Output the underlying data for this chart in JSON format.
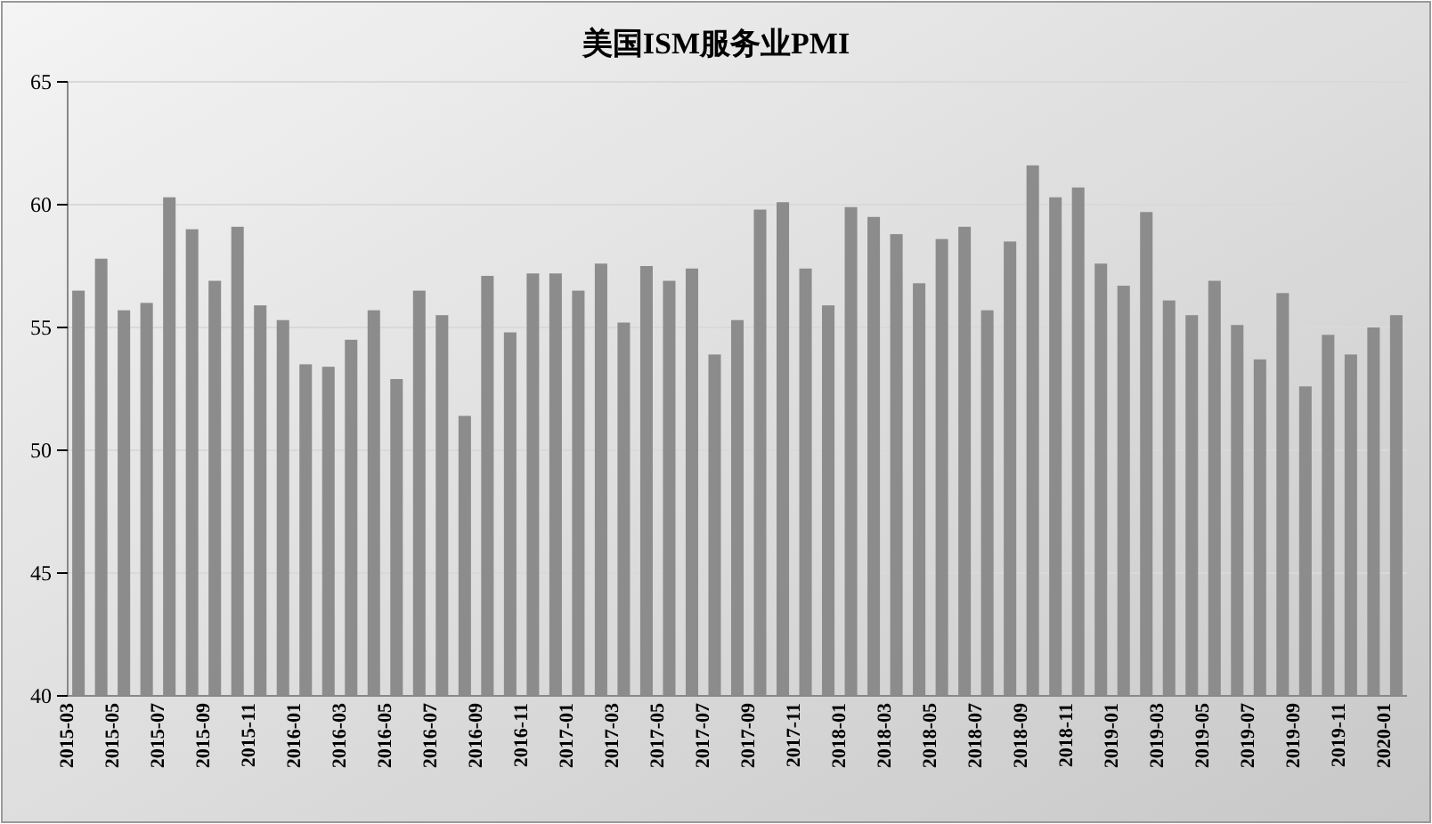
{
  "chart_data": {
    "type": "bar",
    "title": "美国ISM服务业PMI",
    "categories": [
      "2015-03",
      null,
      "2015-05",
      null,
      "2015-07",
      null,
      "2015-09",
      null,
      "2015-11",
      null,
      "2016-01",
      null,
      "2016-03",
      null,
      "2016-05",
      null,
      "2016-07",
      null,
      "2016-09",
      null,
      "2016-11",
      null,
      "2017-01",
      null,
      "2017-03",
      null,
      "2017-05",
      null,
      "2017-07",
      null,
      "2017-09",
      null,
      "2017-11",
      null,
      "2018-01",
      null,
      "2018-03",
      null,
      "2018-05",
      null,
      "2018-07",
      null,
      "2018-09",
      null,
      "2018-11",
      null,
      "2019-01",
      null,
      "2019-03",
      null,
      "2019-05",
      null,
      "2019-07",
      null,
      "2019-09",
      null,
      "2019-11",
      null,
      "2020-01"
    ],
    "values": [
      56.5,
      57.8,
      55.7,
      56.0,
      60.3,
      59.0,
      56.9,
      59.1,
      55.9,
      55.3,
      53.5,
      53.4,
      54.5,
      55.7,
      52.9,
      56.5,
      55.5,
      51.4,
      57.1,
      54.8,
      57.2,
      57.2,
      56.5,
      57.6,
      55.2,
      57.5,
      56.9,
      57.4,
      53.9,
      55.3,
      59.8,
      60.1,
      57.4,
      55.9,
      59.9,
      59.5,
      58.8,
      56.8,
      58.6,
      59.1,
      55.7,
      58.5,
      61.6,
      60.3,
      60.7,
      57.6,
      56.7,
      59.7,
      56.1,
      55.5,
      56.9,
      55.1,
      53.7,
      56.4,
      52.6,
      54.7,
      53.9,
      55.0,
      55.5
    ],
    "color": "#8c8c8c",
    "ylim": [
      40,
      65
    ],
    "yticks": [
      40,
      45,
      50,
      55,
      60,
      65
    ],
    "grid": "y"
  }
}
